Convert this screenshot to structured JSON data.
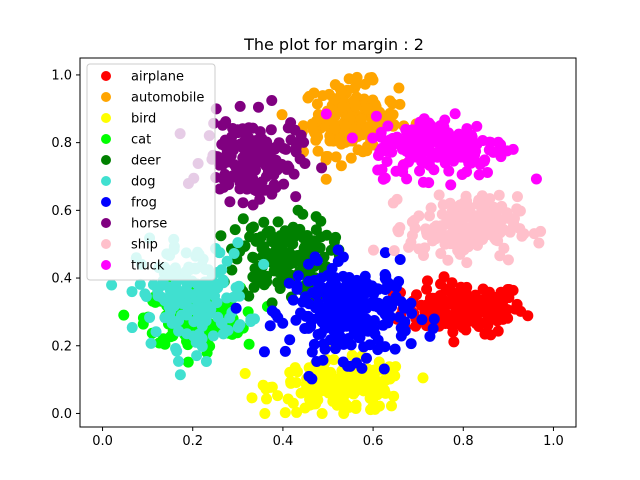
{
  "chart_data": {
    "type": "scatter",
    "title": "The plot for margin : 2",
    "xlabel": "",
    "ylabel": "",
    "xlim": [
      -0.05,
      1.05
    ],
    "ylim": [
      -0.04,
      1.05
    ],
    "xticks": [
      "0.0",
      "0.2",
      "0.4",
      "0.6",
      "0.8",
      "1.0"
    ],
    "yticks": [
      "0.0",
      "0.2",
      "0.4",
      "0.6",
      "0.8",
      "1.0"
    ],
    "xtick_values": [
      0.0,
      0.2,
      0.4,
      0.6,
      0.8,
      1.0
    ],
    "ytick_values": [
      0.0,
      0.2,
      0.4,
      0.6,
      0.8,
      1.0
    ],
    "grid": false,
    "legend_position": "top-left",
    "series": [
      {
        "name": "airplane",
        "color": "#ff0000",
        "center": [
          0.8,
          0.31
        ],
        "spread": [
          0.09,
          0.05
        ],
        "count": 180
      },
      {
        "name": "automobile",
        "color": "#ffa500",
        "center": [
          0.55,
          0.87
        ],
        "spread": [
          0.07,
          0.07
        ],
        "count": 170
      },
      {
        "name": "bird",
        "color": "#ffff00",
        "center": [
          0.53,
          0.08
        ],
        "spread": [
          0.1,
          0.05
        ],
        "count": 180
      },
      {
        "name": "cat",
        "color": "#00ff00",
        "center": [
          0.2,
          0.28
        ],
        "spread": [
          0.07,
          0.06
        ],
        "count": 160
      },
      {
        "name": "deer",
        "color": "#008000",
        "center": [
          0.4,
          0.46
        ],
        "spread": [
          0.07,
          0.08
        ],
        "count": 170
      },
      {
        "name": "dog",
        "color": "#40e0d0",
        "center": [
          0.2,
          0.35
        ],
        "spread": [
          0.08,
          0.1
        ],
        "count": 170
      },
      {
        "name": "frog",
        "color": "#0000ff",
        "center": [
          0.55,
          0.3
        ],
        "spread": [
          0.09,
          0.09
        ],
        "count": 260
      },
      {
        "name": "horse",
        "color": "#800080",
        "center": [
          0.33,
          0.75
        ],
        "spread": [
          0.07,
          0.08
        ],
        "count": 180
      },
      {
        "name": "ship",
        "color": "#ffc0cb",
        "center": [
          0.8,
          0.55
        ],
        "spread": [
          0.08,
          0.06
        ],
        "count": 180
      },
      {
        "name": "truck",
        "color": "#ff00ff",
        "center": [
          0.75,
          0.79
        ],
        "spread": [
          0.1,
          0.06
        ],
        "count": 200
      }
    ]
  }
}
